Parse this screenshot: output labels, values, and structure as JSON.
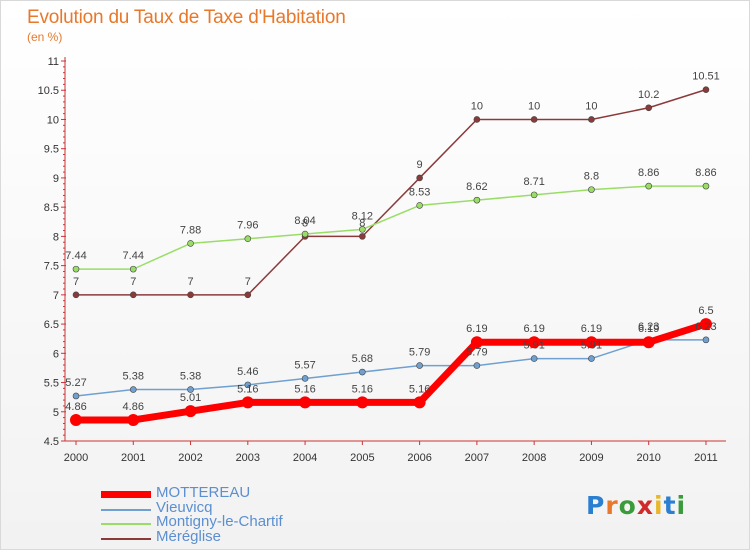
{
  "chart_data": {
    "type": "line",
    "title": "Evolution du Taux de Taxe d'Habitation",
    "subtitle": "(en %)",
    "x": [
      2000,
      2001,
      2002,
      2003,
      2004,
      2005,
      2006,
      2007,
      2008,
      2009,
      2010,
      2011
    ],
    "ylim": [
      4.5,
      11
    ],
    "yticks": [
      4.5,
      5,
      5.5,
      6,
      6.5,
      7,
      7.5,
      8,
      8.5,
      9,
      9.5,
      10,
      10.5,
      11
    ],
    "ytick_labels": [
      "4.5",
      "5",
      "5.5",
      "6",
      "6.5",
      "7",
      "7.5",
      "8",
      "8.5",
      "9",
      "9.5",
      "10",
      "10.5",
      "11"
    ],
    "grid": false,
    "legend_position": "bottom-left",
    "series": [
      {
        "name": "MOTTEREAU",
        "color": "#ff0000",
        "values": [
          4.86,
          4.86,
          5.01,
          5.16,
          5.16,
          5.16,
          5.16,
          6.19,
          6.19,
          6.19,
          6.19,
          6.5
        ],
        "labels": [
          "4.86",
          "4.86",
          "5.01",
          "5.16",
          "5.16",
          "5.16",
          "5.16",
          "6.19",
          "6.19",
          "6.19",
          "6.19",
          "6.5"
        ]
      },
      {
        "name": "Vieuvicq",
        "color": "#6fa0d0",
        "values": [
          5.27,
          5.38,
          5.38,
          5.46,
          5.57,
          5.68,
          5.79,
          5.79,
          5.91,
          5.91,
          6.23,
          6.23
        ],
        "labels": [
          "5.27",
          "5.38",
          "5.38",
          "5.46",
          "5.57",
          "5.68",
          "5.79",
          "5.79",
          "5.91",
          "5.91",
          "6.23",
          "6.23"
        ]
      },
      {
        "name": "Montigny-le-Chartif",
        "color": "#99dd66",
        "values": [
          7.44,
          7.44,
          7.88,
          7.96,
          8.04,
          8.12,
          8.53,
          8.62,
          8.71,
          8.8,
          8.86,
          8.86
        ],
        "labels": [
          "7.44",
          "7.44",
          "7.88",
          "7.96",
          "8.04",
          "8.12",
          "8.53",
          "8.62",
          "8.71",
          "8.8",
          "8.86",
          "8.86"
        ]
      },
      {
        "name": "Méréglise",
        "color": "#8b3a3a",
        "values": [
          7,
          7,
          7,
          7,
          8,
          8,
          9,
          10,
          10,
          10,
          10.2,
          10.51
        ],
        "labels": [
          "7",
          "7",
          "7",
          "7",
          "8",
          "8",
          "9",
          "10",
          "10",
          "10",
          "10.2",
          "10.51"
        ]
      }
    ]
  },
  "logo": {
    "text": "Proxiti"
  }
}
